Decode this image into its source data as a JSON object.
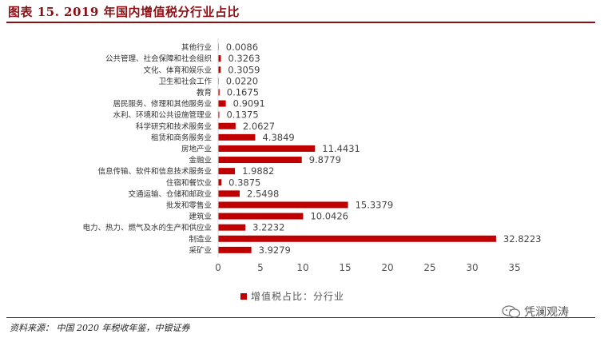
{
  "title": "图表 15. 2019 年国内增值税分行业占比",
  "source": "资料来源： 中国 2020 年税收年鉴，中银证券",
  "watermark": "凭澜观涛",
  "colors": {
    "bar": "#c00000",
    "accent": "#8b0f14",
    "axis": "#d9d9d9"
  },
  "chart_data": {
    "type": "bar",
    "orientation": "horizontal",
    "categories": [
      "其他行业",
      "公共管理、社会保障和社会组织",
      "文化、体育和娱乐业",
      "卫生和社会工作",
      "教育",
      "居民服务、修理和其他服务业",
      "水利、环境和公共设施管理业",
      "科学研究和技术服务业",
      "租赁和商务服务业",
      "房地产业",
      "金融业",
      "信息传输、软件和信息技术服务业",
      "住宿和餐饮业",
      "交通运输、仓储和邮政业",
      "批发和零售业",
      "建筑业",
      "电力、热力、燃气及水的生产和供应业",
      "制造业",
      "采矿业"
    ],
    "series": [
      {
        "name": "增值税占比：分行业",
        "values": [
          0.0086,
          0.3263,
          0.3059,
          0.022,
          0.1675,
          0.9091,
          0.1375,
          2.0627,
          4.3849,
          11.4431,
          9.8779,
          1.9882,
          0.3875,
          2.5498,
          15.3379,
          10.0426,
          3.2232,
          32.8223,
          3.9279
        ],
        "labels": [
          "0.0086",
          "0.3263",
          "0.3059",
          "0.0220",
          "0.1675",
          "0.9091",
          "0.1375",
          "2.0627",
          "4.3849",
          "11.4431",
          "9.8779",
          "1.9882",
          "0.3875",
          "2.5498",
          "15.3379",
          "10.0426",
          "3.2232",
          "32.8223",
          "3.9279"
        ]
      }
    ],
    "xlim": [
      0,
      35
    ],
    "xticks": [
      0,
      5,
      10,
      15,
      20,
      25,
      30,
      35
    ],
    "grid": false,
    "legend_position": "bottom"
  }
}
